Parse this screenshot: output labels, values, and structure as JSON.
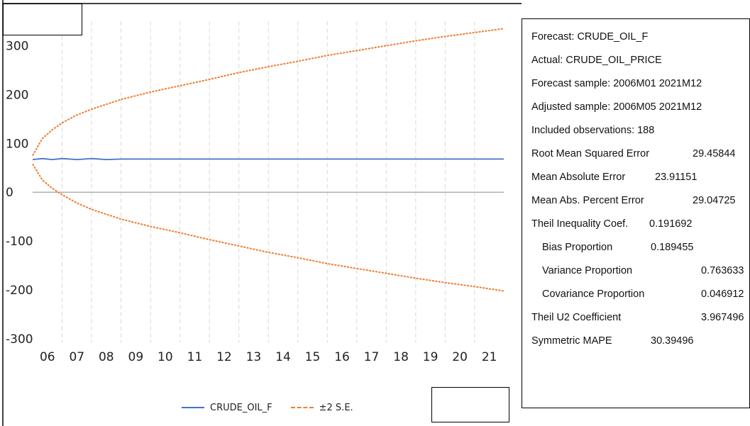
{
  "chart_data": {
    "type": "line",
    "title": "",
    "xlabel": "",
    "ylabel": "",
    "x_tick_labels": [
      "06",
      "07",
      "08",
      "09",
      "10",
      "11",
      "12",
      "13",
      "14",
      "15",
      "16",
      "17",
      "18",
      "19",
      "20",
      "21"
    ],
    "x_range": [
      2006.0,
      2021.99
    ],
    "ylim": [
      -300,
      350
    ],
    "y_ticks": [
      300,
      200,
      100,
      0,
      -100,
      -200,
      -300
    ],
    "y_tick_labels": [
      "300",
      "200",
      "100",
      "0",
      "-100",
      "-200",
      "-300"
    ],
    "grid": "vertical",
    "series": [
      {
        "name": "CRUDE_OIL_F",
        "style": "solid",
        "color": "#4472C4",
        "x": [
          2006.0,
          2006.33,
          2006.67,
          2007.0,
          2007.5,
          2008.0,
          2008.5,
          2009.0,
          2010.0,
          2012.0,
          2014.0,
          2016.0,
          2018.0,
          2020.0,
          2021.99
        ],
        "values": [
          67,
          69,
          67,
          69,
          67,
          69,
          67,
          68,
          68,
          68,
          68,
          68,
          68,
          68,
          68
        ]
      },
      {
        "name": "±2 S.E.",
        "style": "dashed",
        "color": "#ED7D31",
        "x": [
          2006.0,
          2006.33,
          2006.67,
          2007.0,
          2007.5,
          2008.0,
          2009.0,
          2010.0,
          2011.0,
          2012.0,
          2013.0,
          2014.0,
          2015.0,
          2016.0,
          2017.0,
          2018.0,
          2019.0,
          2020.0,
          2021.0,
          2021.99
        ],
        "values": [
          75,
          110,
          128,
          142,
          158,
          170,
          190,
          205,
          218,
          231,
          245,
          257,
          268,
          280,
          290,
          300,
          310,
          319,
          327,
          335
        ]
      },
      {
        "name": "±2 S.E.",
        "style": "dashed",
        "color": "#ED7D31",
        "x": [
          2006.0,
          2006.33,
          2006.67,
          2007.0,
          2007.5,
          2008.0,
          2009.0,
          2010.0,
          2011.0,
          2012.0,
          2013.0,
          2014.0,
          2015.0,
          2016.0,
          2017.0,
          2018.0,
          2019.0,
          2020.0,
          2021.0,
          2021.99
        ],
        "values": [
          58,
          25,
          8,
          -5,
          -22,
          -35,
          -55,
          -70,
          -83,
          -97,
          -110,
          -123,
          -134,
          -146,
          -156,
          -166,
          -176,
          -185,
          -193,
          -202
        ]
      }
    ],
    "legend": [
      "CRUDE_OIL_F",
      "±2 S.E."
    ],
    "legend_position": "bottom"
  },
  "stats": {
    "forecast": "Forecast: CRUDE_OIL_F",
    "actual": "Actual: CRUDE_OIL_PRICE",
    "forecast_sample": "Forecast sample: 2006M01 2021M12",
    "adjusted_sample": "Adjusted sample: 2006M05 2021M12",
    "included_obs": "Included observations: 188",
    "rmse_label": "Root Mean Squared Error",
    "rmse_value": "29.45844",
    "mae_label": "Mean Absolute Error",
    "mae_value": "23.91151",
    "mape_label": "Mean Abs. Percent Error",
    "mape_value": "29.04725",
    "theil_label": "Theil Inequality Coef.",
    "theil_value": "0.191692",
    "bias_label": "Bias Proportion",
    "bias_value": "0.189455",
    "variance_label": "Variance Proportion",
    "variance_value": "0.763633",
    "covariance_label": "Covariance Proportion",
    "covariance_value": "0.046912",
    "u2_label": "Theil U2 Coefficient",
    "u2_value": "3.967496",
    "smape_label": "Symmetric MAPE",
    "smape_value": "30.39496"
  }
}
